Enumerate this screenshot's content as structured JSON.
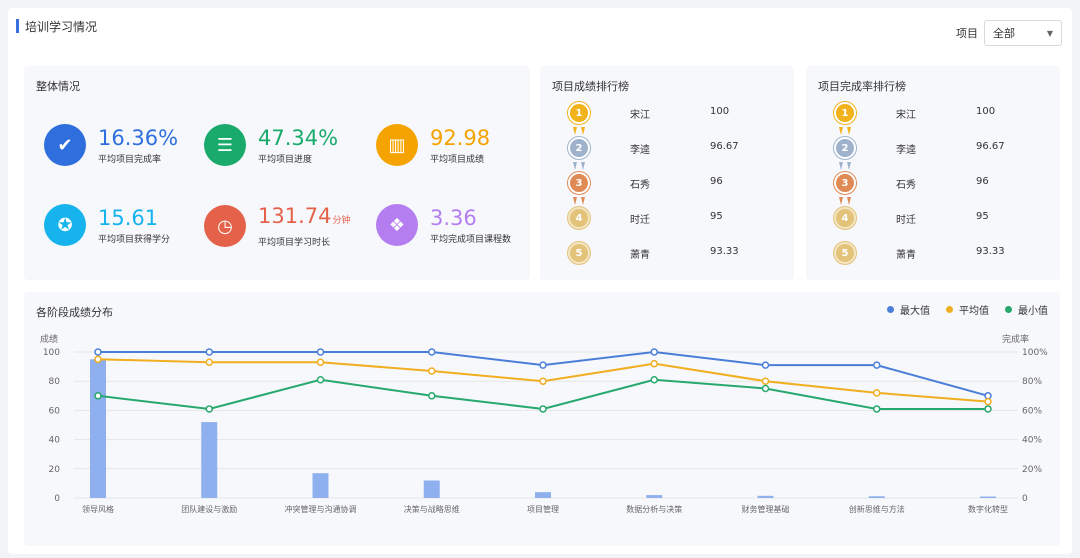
{
  "header": {
    "title": "培训学习情况"
  },
  "filter": {
    "label": "项目",
    "value": "全部"
  },
  "overall": {
    "title": "整体情况",
    "stats": [
      {
        "value": "16.36%",
        "unit": "",
        "label": "平均项目完成率",
        "color": "#2f6fdd",
        "icon": "check-icon",
        "text_color": "#2f6fdd"
      },
      {
        "value": "47.34%",
        "unit": "",
        "label": "平均项目进度",
        "color": "#1aaa6b",
        "icon": "sliders-icon",
        "text_color": "#1aaa6b"
      },
      {
        "value": "92.98",
        "unit": "",
        "label": "平均项目成绩",
        "color": "#f5a300",
        "icon": "bar-chart-icon",
        "text_color": "#f5a300"
      },
      {
        "value": "15.61",
        "unit": "",
        "label": "平均项目获得学分",
        "color": "#17b3ec",
        "icon": "star-badge-icon",
        "text_color": "#17b3ec"
      },
      {
        "value": "131.74",
        "unit": "分钟",
        "label": "平均项目学习时长",
        "color": "#e5624a",
        "icon": "clock-icon",
        "text_color": "#e5624a"
      },
      {
        "value": "3.36",
        "unit": "",
        "label": "平均完成项目课程数",
        "color": "#b47ef0",
        "icon": "layers-icon",
        "text_color": "#b47ef0"
      }
    ]
  },
  "rank_score": {
    "title": "项目成绩排行榜",
    "rows": [
      {
        "rank": "1",
        "name": "宋江",
        "score": "100"
      },
      {
        "rank": "2",
        "name": "李逵",
        "score": "96.67"
      },
      {
        "rank": "3",
        "name": "石秀",
        "score": "96"
      },
      {
        "rank": "4",
        "name": "时迁",
        "score": "95"
      },
      {
        "rank": "5",
        "name": "萧青",
        "score": "93.33"
      }
    ]
  },
  "rank_complete": {
    "title": "项目完成率排行榜",
    "rows": [
      {
        "rank": "1",
        "name": "宋江",
        "score": "100"
      },
      {
        "rank": "2",
        "name": "李逵",
        "score": "96.67"
      },
      {
        "rank": "3",
        "name": "石秀",
        "score": "96"
      },
      {
        "rank": "4",
        "name": "时迁",
        "score": "95"
      },
      {
        "rank": "5",
        "name": "萧青",
        "score": "93.33"
      }
    ]
  },
  "medal_colors": [
    "#f2b21c",
    "#9fb2cc",
    "#e08a55",
    "#e3c27a",
    "#e3c27a"
  ],
  "chart_panel": {
    "title": "各阶段成绩分布"
  },
  "chart_data": {
    "type": "bar+line",
    "categories": [
      "领导风格",
      "团队建设与激励",
      "冲突管理与沟通协调",
      "决策与战略思维",
      "项目管理",
      "数据分析与决策",
      "财务管理基础",
      "创新思维与方法",
      "数字化转型"
    ],
    "ylabel_left": "成绩",
    "ylabel_right": "完成率",
    "ylim_left": [
      0,
      100
    ],
    "yticks_left": [
      "0",
      "20",
      "40",
      "60",
      "80",
      "100"
    ],
    "ylim_right": [
      0,
      100
    ],
    "yticks_right": [
      "0",
      "20%",
      "40%",
      "60%",
      "80%",
      "100%"
    ],
    "bars": {
      "name": "完成率",
      "color": "#8fb0ee",
      "values": [
        95,
        52,
        17,
        12,
        4,
        2,
        1.5,
        1.2,
        1
      ]
    },
    "series": [
      {
        "name": "最大值",
        "color": "#4a7ed8",
        "values": [
          100,
          100,
          100,
          100,
          91,
          100,
          91,
          91,
          70
        ]
      },
      {
        "name": "平均值",
        "color": "#f0ae20",
        "values": [
          95,
          93,
          93,
          87,
          80,
          92,
          80,
          72,
          66
        ]
      },
      {
        "name": "最小值",
        "color": "#27a86e",
        "values": [
          70,
          61,
          81,
          70,
          61,
          81,
          75,
          61,
          61
        ]
      }
    ]
  }
}
